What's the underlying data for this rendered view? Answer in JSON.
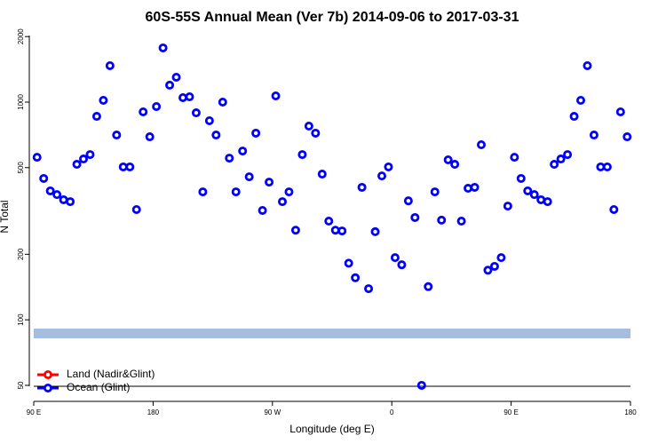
{
  "chart_data": {
    "type": "scatter",
    "title": "60S-55S Annual Mean (Ver 7b)   2014-09-06 to 2017-03-31",
    "xlabel": "Longitude (deg E)",
    "ylabel": "N Total",
    "x": [
      92.5,
      97.5,
      102.5,
      107.5,
      112.5,
      117.5,
      122.5,
      127.5,
      132.5,
      137.5,
      142.5,
      147.5,
      152.5,
      157.5,
      162.5,
      167.5,
      172.5,
      177.5,
      182.5,
      187.5,
      192.5,
      197.5,
      202.5,
      207.5,
      212.5,
      217.5,
      222.5,
      227.5,
      232.5,
      237.5,
      242.5,
      247.5,
      252.5,
      257.5,
      262.5,
      267.5,
      272.5,
      277.5,
      282.5,
      287.5,
      292.5,
      297.5,
      302.5,
      307.5,
      312.5,
      317.5,
      322.5,
      327.5,
      332.5,
      337.5,
      342.5,
      347.5,
      352.5,
      357.5,
      362.5,
      367.5,
      372.5,
      377.5,
      382.5,
      387.5,
      392.5,
      397.5,
      402.5,
      407.5,
      412.5,
      417.5,
      422.5,
      427.5,
      432.5,
      437.5,
      442.5,
      447.5,
      452.5,
      457.5,
      462.5,
      467.5,
      472.5,
      477.5,
      482.5,
      487.5,
      492.5,
      497.5,
      502.5,
      507.5,
      512.5,
      517.5,
      522.5,
      527.5,
      532.5,
      537.5
    ],
    "series": [
      {
        "name": "Land (Nadir&Glint)",
        "color": "#ff0000",
        "values": [
          null,
          null,
          null,
          null,
          null,
          null,
          null,
          null,
          null,
          null,
          null,
          null,
          null,
          null,
          null,
          null,
          null,
          null,
          null,
          null,
          null,
          null,
          null,
          null,
          null,
          null,
          null,
          null,
          null,
          null,
          null,
          null,
          null,
          null,
          null,
          null,
          null,
          null,
          null,
          null,
          null,
          null,
          null,
          null,
          null,
          null,
          null,
          null,
          null,
          null,
          null,
          null,
          null,
          null,
          null,
          null,
          null,
          null,
          null,
          null,
          null,
          null,
          null,
          null,
          null,
          null,
          null,
          null,
          null,
          null,
          null,
          null,
          null,
          null,
          null,
          null,
          null,
          null,
          null,
          null,
          null,
          null,
          null,
          null,
          null,
          null,
          null,
          null,
          null,
          null
        ]
      },
      {
        "name": "Ocean (Glint)",
        "color": "#0000ff",
        "values": [
          558,
          446,
          391,
          376,
          356,
          349,
          518,
          548,
          574,
          860,
          1019,
          1470,
          706,
          504,
          504,
          321,
          902,
          693,
          954,
          1774,
          1196,
          1301,
          1048,
          1058,
          893,
          387,
          821,
          706,
          1000,
          553,
          387,
          596,
          454,
          720,
          318,
          429,
          1068,
          349,
          387,
          258,
          574,
          776,
          720,
          467,
          284,
          258,
          256,
          182,
          156,
          406,
          139,
          254,
          458,
          504,
          193,
          179,
          352,
          295,
          50,
          142,
          387,
          287,
          543,
          518,
          284,
          402,
          406,
          637,
          169,
          176,
          193,
          333,
          558,
          446,
          391,
          376,
          356,
          349,
          518,
          548,
          574,
          860,
          1019,
          1470,
          706,
          504,
          504,
          321,
          902,
          693
        ]
      }
    ],
    "xlim": [
      90,
      540
    ],
    "xticks": [
      {
        "value": 90,
        "label": "90 E"
      },
      180,
      {
        "value": 270,
        "label": "90 W"
      },
      {
        "value": 360,
        "label": "0"
      },
      {
        "value": 450,
        "label": "90 E"
      },
      {
        "value": 540,
        "label": "180"
      }
    ],
    "ylim": [
      43,
      2100
    ],
    "yticks": [
      50,
      100,
      200,
      500,
      1000,
      2000
    ],
    "log_y": true,
    "legend": "bottom-left"
  }
}
